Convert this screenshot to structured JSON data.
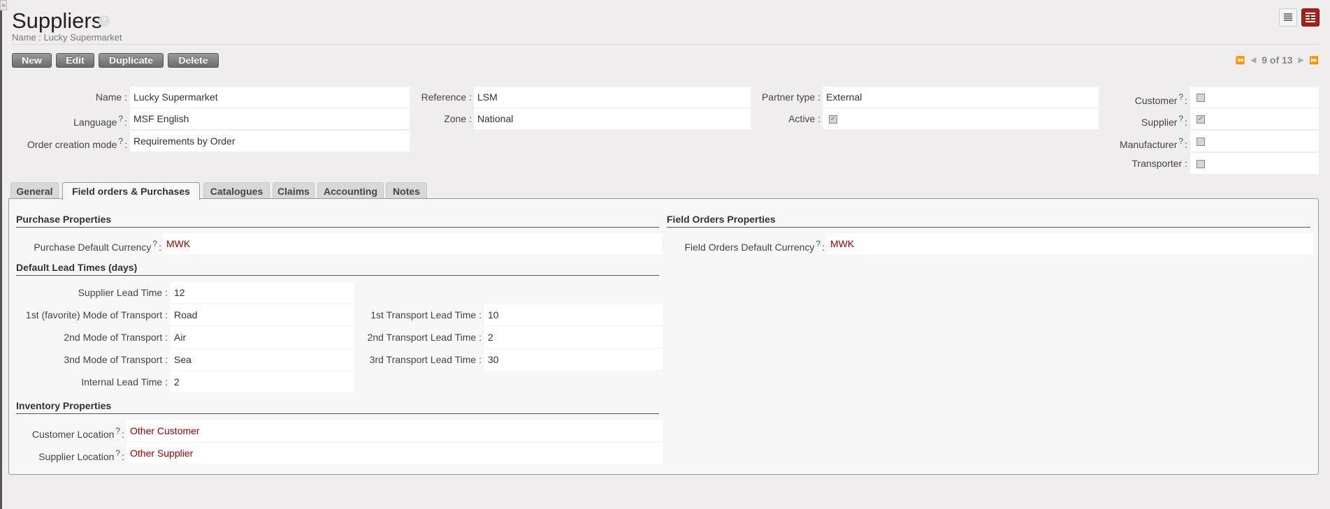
{
  "header": {
    "title": "Suppliers",
    "subtitle": "Name : Lucky Supermarket",
    "help": "?",
    "sidebar_toggle": "»"
  },
  "toolbar": {
    "new": "New",
    "edit": "Edit",
    "duplicate": "Duplicate",
    "delete": "Delete"
  },
  "view_switch": {
    "list": "list-view-icon",
    "form": "form-view-icon",
    "active": "form",
    "active_color": "#a3221b"
  },
  "pager": {
    "first": "⏪",
    "prev": "◀",
    "text": "9 of 13",
    "next": "▶",
    "last": "⏩"
  },
  "fields": {
    "name": {
      "label": "Name :",
      "value": "Lucky Supermarket"
    },
    "language": {
      "label": "Language",
      "value": "MSF English"
    },
    "order_mode": {
      "label": "Order creation mode",
      "value": "Requirements by Order"
    },
    "reference": {
      "label": "Reference :",
      "value": "LSM"
    },
    "zone": {
      "label": "Zone :",
      "value": "National"
    },
    "partner_type": {
      "label": "Partner type :",
      "value": "External"
    },
    "active": {
      "label": "Active :",
      "checked": true
    },
    "customer": {
      "label": "Customer",
      "checked": false
    },
    "supplier": {
      "label": "Supplier",
      "checked": true
    },
    "manufacturer": {
      "label": "Manufacturer",
      "checked": false
    },
    "transporter": {
      "label": "Transporter :",
      "checked": false
    }
  },
  "tabs": [
    "General",
    "Field orders & Purchases",
    "Catalogues",
    "Claims",
    "Accounting",
    "Notes"
  ],
  "active_tab": "Field orders & Purchases",
  "purchase": {
    "heading": "Purchase Properties",
    "currency_label": "Purchase Default Currency",
    "currency": "MWK"
  },
  "field_orders": {
    "heading": "Field Orders Properties",
    "currency_label": "Field Orders Default Currency",
    "currency": "MWK"
  },
  "lead": {
    "heading": "Default Lead Times (days)",
    "supplier_lt": {
      "label": "Supplier Lead Time :",
      "value": "12"
    },
    "mode1": {
      "label": "1st (favorite) Mode of Transport :",
      "value": "Road"
    },
    "mode2": {
      "label": "2nd Mode of Transport :",
      "value": "Air"
    },
    "mode3": {
      "label": "3nd Mode of Transport :",
      "value": "Sea"
    },
    "internal": {
      "label": "Internal Lead Time :",
      "value": "2"
    },
    "lt1": {
      "label": "1st Transport Lead Time :",
      "value": "10"
    },
    "lt2": {
      "label": "2nd Transport Lead Time :",
      "value": "2"
    },
    "lt3": {
      "label": "3rd Transport Lead Time :",
      "value": "30"
    }
  },
  "inventory": {
    "heading": "Inventory Properties",
    "customer_loc": {
      "label": "Customer Location",
      "value": "Other Customer"
    },
    "supplier_loc": {
      "label": "Supplier Location",
      "value": "Other Supplier"
    }
  },
  "colon": ":",
  "check": "✓"
}
